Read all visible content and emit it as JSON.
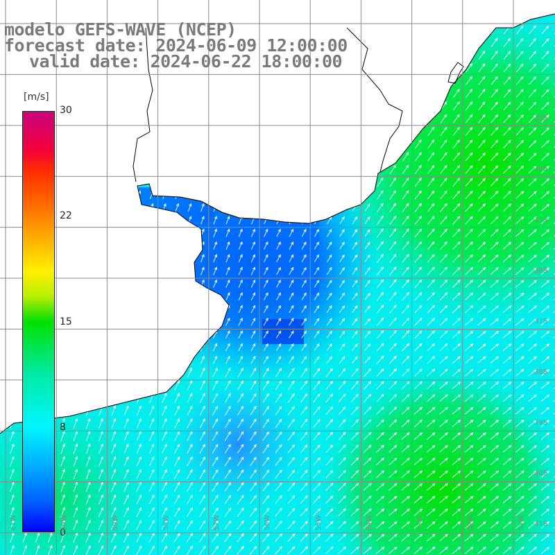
{
  "title": {
    "line1": "modelo GEFS-WAVE (NCEP)",
    "line2": "forecast date: 2024-06-09 12:00:00",
    "line3": "valid date: 2024-06-22 18:00:00"
  },
  "colorbar": {
    "unit": "[m/s]",
    "ticks": [
      "30",
      "22",
      "15",
      "8",
      "0"
    ],
    "range": [
      0,
      30
    ],
    "colors": [
      "#0000ff",
      "#0060ff",
      "#00b0ff",
      "#00f6ff",
      "#00eaa0",
      "#00e000",
      "#fff000",
      "#ff7a00",
      "#f4003a",
      "#c8047e"
    ]
  },
  "map": {
    "variable": "wind speed and direction",
    "region": "Rio de la Plata / southern Brazil coast",
    "land_color": "#ffffff",
    "coastline_color": "#000000",
    "grid_color": "#8a8a8a",
    "arrow_color": "#ffffff",
    "lat_labels": [
      "33S",
      "34S",
      "35S",
      "36S",
      "37S",
      "38S",
      "39S",
      "40S",
      "41S"
    ],
    "lon_labels": [
      "61W",
      "60W",
      "59W",
      "58W",
      "57W",
      "56W",
      "55W",
      "54W",
      "53W",
      "52W",
      "51W"
    ]
  }
}
